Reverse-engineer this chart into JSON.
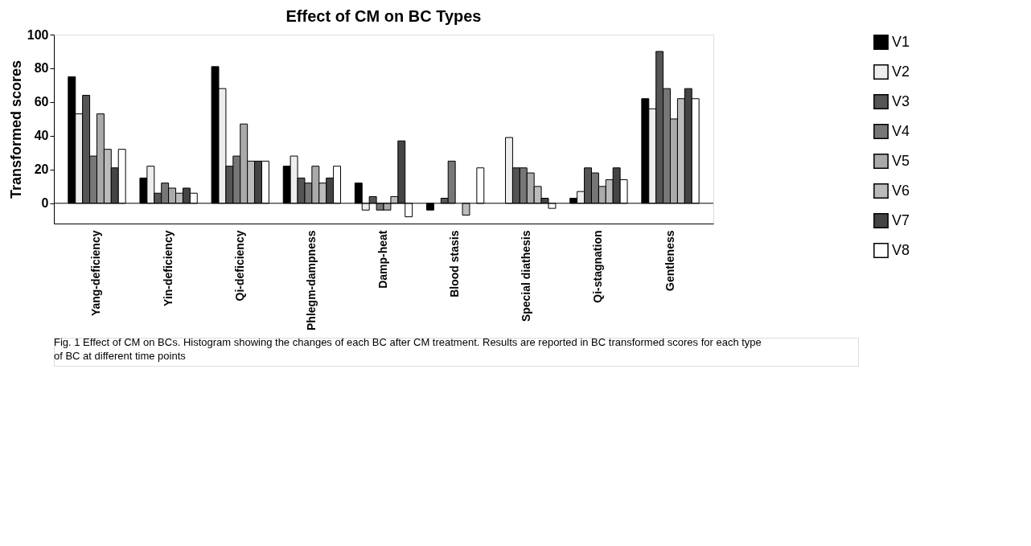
{
  "chart_data": {
    "type": "bar",
    "title": "Effect of CM on BC Types",
    "ylabel": "Transformed scores",
    "categories": [
      "Yang-deficiency",
      "Yin-deficiency",
      "Qi-deficiency",
      "Phlegm-dampness",
      "Damp-heat",
      "Blood stasis",
      "Special diathesis",
      "Qi-stagnation",
      "Gentleness"
    ],
    "series": [
      {
        "name": "V1",
        "color": "#000000",
        "values": [
          75,
          15,
          81,
          22,
          12,
          -4,
          null,
          3,
          62
        ]
      },
      {
        "name": "V2",
        "color": "#eeeeee",
        "values": [
          53,
          22,
          68,
          28,
          -4,
          null,
          39,
          7,
          56
        ]
      },
      {
        "name": "V3",
        "color": "#555555",
        "values": [
          64,
          6,
          22,
          15,
          4,
          3,
          21,
          21,
          90
        ]
      },
      {
        "name": "V4",
        "color": "#777777",
        "values": [
          28,
          12,
          28,
          12,
          -4,
          25,
          21,
          18,
          68
        ]
      },
      {
        "name": "V5",
        "color": "#aaaaaa",
        "values": [
          53,
          9,
          47,
          22,
          -4,
          null,
          18,
          10,
          50
        ]
      },
      {
        "name": "V6",
        "color": "#bbbbbb",
        "values": [
          32,
          6,
          25,
          12,
          4,
          -7,
          10,
          14,
          62
        ]
      },
      {
        "name": "V7",
        "color": "#444444",
        "values": [
          21,
          9,
          25,
          15,
          37,
          null,
          3,
          21,
          68
        ]
      },
      {
        "name": "V8",
        "color": "#ffffff",
        "values": [
          32,
          6,
          25,
          22,
          -8,
          21,
          -3,
          14,
          62
        ]
      }
    ],
    "ylim": [
      -12,
      100
    ],
    "yticks": [
      0,
      20,
      40,
      60,
      80,
      100
    ],
    "grid": false,
    "legend": "right",
    "ref_lines": [
      {
        "axis": "y",
        "value": 0
      }
    ],
    "annotations": [
      "Fig. 1 Effect of CM on BCs. Histogram showing the changes of each BC after CM treatment. Results are reported in BC transformed scores for each type of BC at different time points"
    ]
  }
}
